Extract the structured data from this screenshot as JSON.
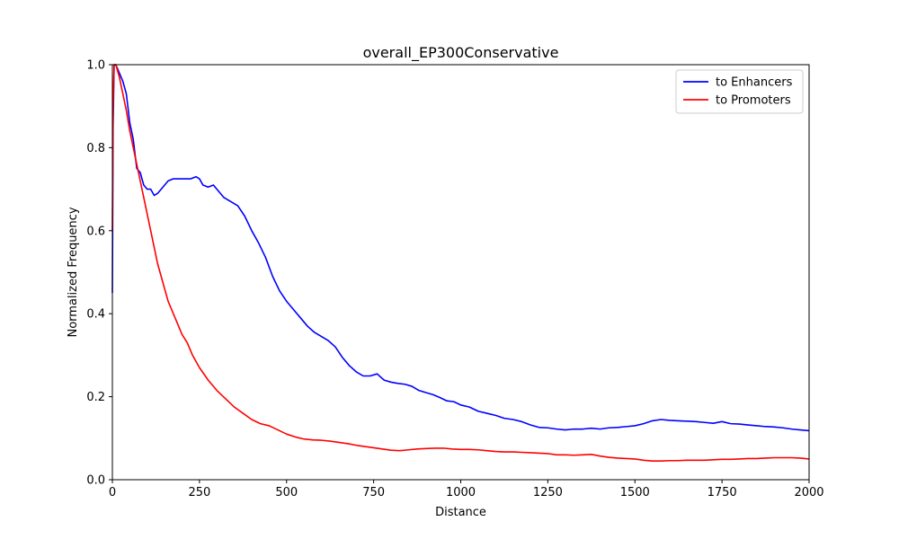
{
  "chart_data": {
    "type": "line",
    "title": "overall_EP300Conservative",
    "xlabel": "Distance",
    "ylabel": "Normalized Frequency",
    "xlim": [
      0,
      2000
    ],
    "ylim": [
      0,
      1.0
    ],
    "xticks": [
      0,
      250,
      500,
      750,
      1000,
      1250,
      1500,
      1750,
      2000
    ],
    "yticks": [
      0.0,
      0.2,
      0.4,
      0.6,
      0.8,
      1.0
    ],
    "xtick_labels": [
      "0",
      "250",
      "500",
      "750",
      "1000",
      "1250",
      "1500",
      "1750",
      "2000"
    ],
    "ytick_labels": [
      "0.0",
      "0.2",
      "0.4",
      "0.6",
      "0.8",
      "1.0"
    ],
    "grid": false,
    "legend_position": "top-right",
    "series": [
      {
        "name": "to Enhancers",
        "color": "#0000ff",
        "x": [
          0,
          2,
          5,
          10,
          20,
          30,
          40,
          50,
          60,
          70,
          80,
          90,
          100,
          110,
          120,
          130,
          140,
          150,
          160,
          175,
          200,
          225,
          240,
          250,
          260,
          275,
          290,
          300,
          320,
          340,
          360,
          380,
          400,
          420,
          440,
          460,
          480,
          500,
          520,
          540,
          560,
          580,
          600,
          620,
          640,
          660,
          680,
          700,
          720,
          740,
          760,
          780,
          800,
          820,
          840,
          860,
          880,
          900,
          920,
          940,
          960,
          980,
          1000,
          1025,
          1050,
          1075,
          1100,
          1125,
          1150,
          1175,
          1200,
          1225,
          1250,
          1275,
          1300,
          1325,
          1350,
          1375,
          1400,
          1425,
          1450,
          1475,
          1500,
          1525,
          1550,
          1575,
          1600,
          1625,
          1650,
          1675,
          1700,
          1725,
          1750,
          1775,
          1800,
          1825,
          1850,
          1875,
          1900,
          1925,
          1950,
          1975,
          2000
        ],
        "y": [
          0.45,
          0.85,
          1.0,
          1.0,
          0.98,
          0.96,
          0.93,
          0.86,
          0.82,
          0.75,
          0.74,
          0.71,
          0.7,
          0.7,
          0.685,
          0.69,
          0.7,
          0.71,
          0.72,
          0.725,
          0.725,
          0.725,
          0.73,
          0.725,
          0.71,
          0.705,
          0.71,
          0.7,
          0.68,
          0.67,
          0.66,
          0.635,
          0.6,
          0.57,
          0.535,
          0.49,
          0.455,
          0.43,
          0.41,
          0.39,
          0.37,
          0.355,
          0.345,
          0.335,
          0.32,
          0.295,
          0.275,
          0.26,
          0.25,
          0.25,
          0.255,
          0.24,
          0.235,
          0.232,
          0.23,
          0.225,
          0.215,
          0.21,
          0.205,
          0.198,
          0.19,
          0.188,
          0.18,
          0.175,
          0.165,
          0.16,
          0.155,
          0.148,
          0.145,
          0.14,
          0.132,
          0.126,
          0.125,
          0.122,
          0.12,
          0.122,
          0.122,
          0.124,
          0.122,
          0.125,
          0.126,
          0.128,
          0.13,
          0.135,
          0.142,
          0.145,
          0.143,
          0.142,
          0.141,
          0.14,
          0.138,
          0.136,
          0.14,
          0.135,
          0.134,
          0.132,
          0.13,
          0.128,
          0.127,
          0.125,
          0.122,
          0.12,
          0.118
        ]
      },
      {
        "name": "to Promoters",
        "color": "#ff0000",
        "x": [
          0,
          2,
          5,
          10,
          20,
          30,
          40,
          50,
          60,
          70,
          80,
          90,
          100,
          110,
          120,
          130,
          140,
          150,
          160,
          175,
          190,
          200,
          215,
          230,
          250,
          275,
          300,
          325,
          350,
          375,
          400,
          425,
          450,
          475,
          500,
          525,
          550,
          575,
          600,
          625,
          650,
          675,
          700,
          725,
          750,
          775,
          800,
          825,
          850,
          875,
          900,
          925,
          950,
          975,
          1000,
          1025,
          1050,
          1075,
          1100,
          1125,
          1150,
          1175,
          1200,
          1225,
          1250,
          1275,
          1300,
          1325,
          1350,
          1375,
          1400,
          1425,
          1450,
          1475,
          1500,
          1525,
          1550,
          1575,
          1600,
          1625,
          1650,
          1675,
          1700,
          1725,
          1750,
          1775,
          1800,
          1825,
          1850,
          1875,
          1900,
          1925,
          1950,
          1975,
          2000
        ],
        "y": [
          0.6,
          0.9,
          1.0,
          1.0,
          0.97,
          0.93,
          0.89,
          0.84,
          0.8,
          0.76,
          0.72,
          0.68,
          0.64,
          0.6,
          0.56,
          0.52,
          0.49,
          0.46,
          0.43,
          0.4,
          0.37,
          0.35,
          0.33,
          0.3,
          0.27,
          0.24,
          0.215,
          0.195,
          0.175,
          0.16,
          0.145,
          0.135,
          0.13,
          0.12,
          0.11,
          0.103,
          0.098,
          0.096,
          0.095,
          0.093,
          0.09,
          0.087,
          0.083,
          0.08,
          0.077,
          0.074,
          0.071,
          0.07,
          0.072,
          0.074,
          0.075,
          0.076,
          0.076,
          0.074,
          0.073,
          0.073,
          0.072,
          0.07,
          0.068,
          0.067,
          0.067,
          0.066,
          0.065,
          0.064,
          0.063,
          0.06,
          0.06,
          0.059,
          0.06,
          0.061,
          0.057,
          0.054,
          0.052,
          0.051,
          0.05,
          0.047,
          0.045,
          0.045,
          0.046,
          0.046,
          0.047,
          0.047,
          0.047,
          0.048,
          0.049,
          0.049,
          0.05,
          0.051,
          0.051,
          0.052,
          0.053,
          0.053,
          0.053,
          0.052,
          0.05
        ]
      }
    ]
  }
}
